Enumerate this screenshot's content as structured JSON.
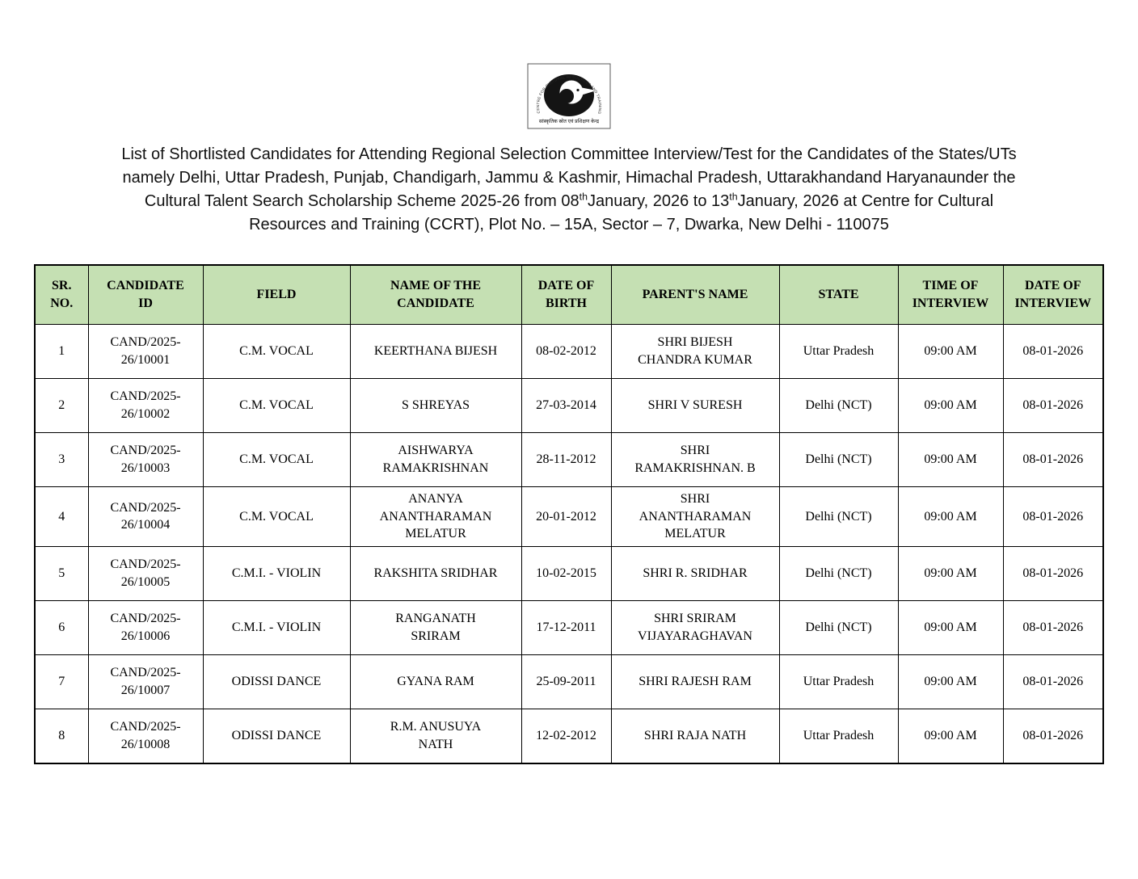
{
  "logo": {
    "ring_text": "CENTRE FOR CULTURAL RESOURCES AND TRAINING",
    "hindi_text": "सांस्कृतिक स्रोत एवं प्रशिक्षण केन्द्र"
  },
  "title": {
    "part1": "List of Shortlisted Candidates for Attending Regional Selection Committee Interview/Test for the Candidates of the States/UTs namely Delhi, Uttar Pradesh, Punjab, Chandigarh, Jammu & Kashmir, Himachal Pradesh, Uttarakhandand Haryanaunder the Cultural Talent Search Scholarship Scheme 2025-26 from 08",
    "sup1": "th",
    "part2": "January, 2026 to 13",
    "sup2": "th",
    "part3": "January, 2026 at Centre for Cultural Resources and Training (CCRT), Plot No. – 15A, Sector – 7, Dwarka, New Delhi - 110075"
  },
  "table": {
    "header_bg": "#c5e0b3",
    "border_color": "#000000",
    "headers": [
      "SR.\nNO.",
      "CANDIDATE\nID",
      "FIELD",
      "NAME OF THE\nCANDIDATE",
      "DATE OF\nBIRTH",
      "PARENT'S NAME",
      "STATE",
      "TIME OF\nINTERVIEW",
      "DATE OF\nINTERVIEW"
    ],
    "rows": [
      [
        "1",
        "CAND/2025-\n26/10001",
        "C.M. VOCAL",
        "KEERTHANA BIJESH",
        "08-02-2012",
        "SHRI BIJESH\nCHANDRA KUMAR",
        "Uttar Pradesh",
        "09:00 AM",
        "08-01-2026"
      ],
      [
        "2",
        "CAND/2025-\n26/10002",
        "C.M. VOCAL",
        "S SHREYAS",
        "27-03-2014",
        "SHRI V SURESH",
        "Delhi (NCT)",
        "09:00 AM",
        "08-01-2026"
      ],
      [
        "3",
        "CAND/2025-\n26/10003",
        "C.M. VOCAL",
        "AISHWARYA\nRAMAKRISHNAN",
        "28-11-2012",
        "SHRI\nRAMAKRISHNAN. B",
        "Delhi (NCT)",
        "09:00 AM",
        "08-01-2026"
      ],
      [
        "4",
        "CAND/2025-\n26/10004",
        "C.M. VOCAL",
        "ANANYA\nANANTHARAMAN\nMELATUR",
        "20-01-2012",
        "SHRI\nANANTHARAMAN\nMELATUR",
        "Delhi (NCT)",
        "09:00 AM",
        "08-01-2026"
      ],
      [
        "5",
        "CAND/2025-\n26/10005",
        "C.M.I. - VIOLIN",
        "RAKSHITA SRIDHAR",
        "10-02-2015",
        "SHRI R. SRIDHAR",
        "Delhi (NCT)",
        "09:00 AM",
        "08-01-2026"
      ],
      [
        "6",
        "CAND/2025-\n26/10006",
        "C.M.I. - VIOLIN",
        "RANGANATH\nSRIRAM",
        "17-12-2011",
        "SHRI SRIRAM\nVIJAYARAGHAVAN",
        "Delhi (NCT)",
        "09:00 AM",
        "08-01-2026"
      ],
      [
        "7",
        "CAND/2025-\n26/10007",
        "ODISSI DANCE",
        "GYANA RAM",
        "25-09-2011",
        "SHRI RAJESH RAM",
        "Uttar Pradesh",
        "09:00 AM",
        "08-01-2026"
      ],
      [
        "8",
        "CAND/2025-\n26/10008",
        "ODISSI DANCE",
        "R.M. ANUSUYA\nNATH",
        "12-02-2012",
        "SHRI RAJA NATH",
        "Uttar Pradesh",
        "09:00 AM",
        "08-01-2026"
      ]
    ]
  }
}
